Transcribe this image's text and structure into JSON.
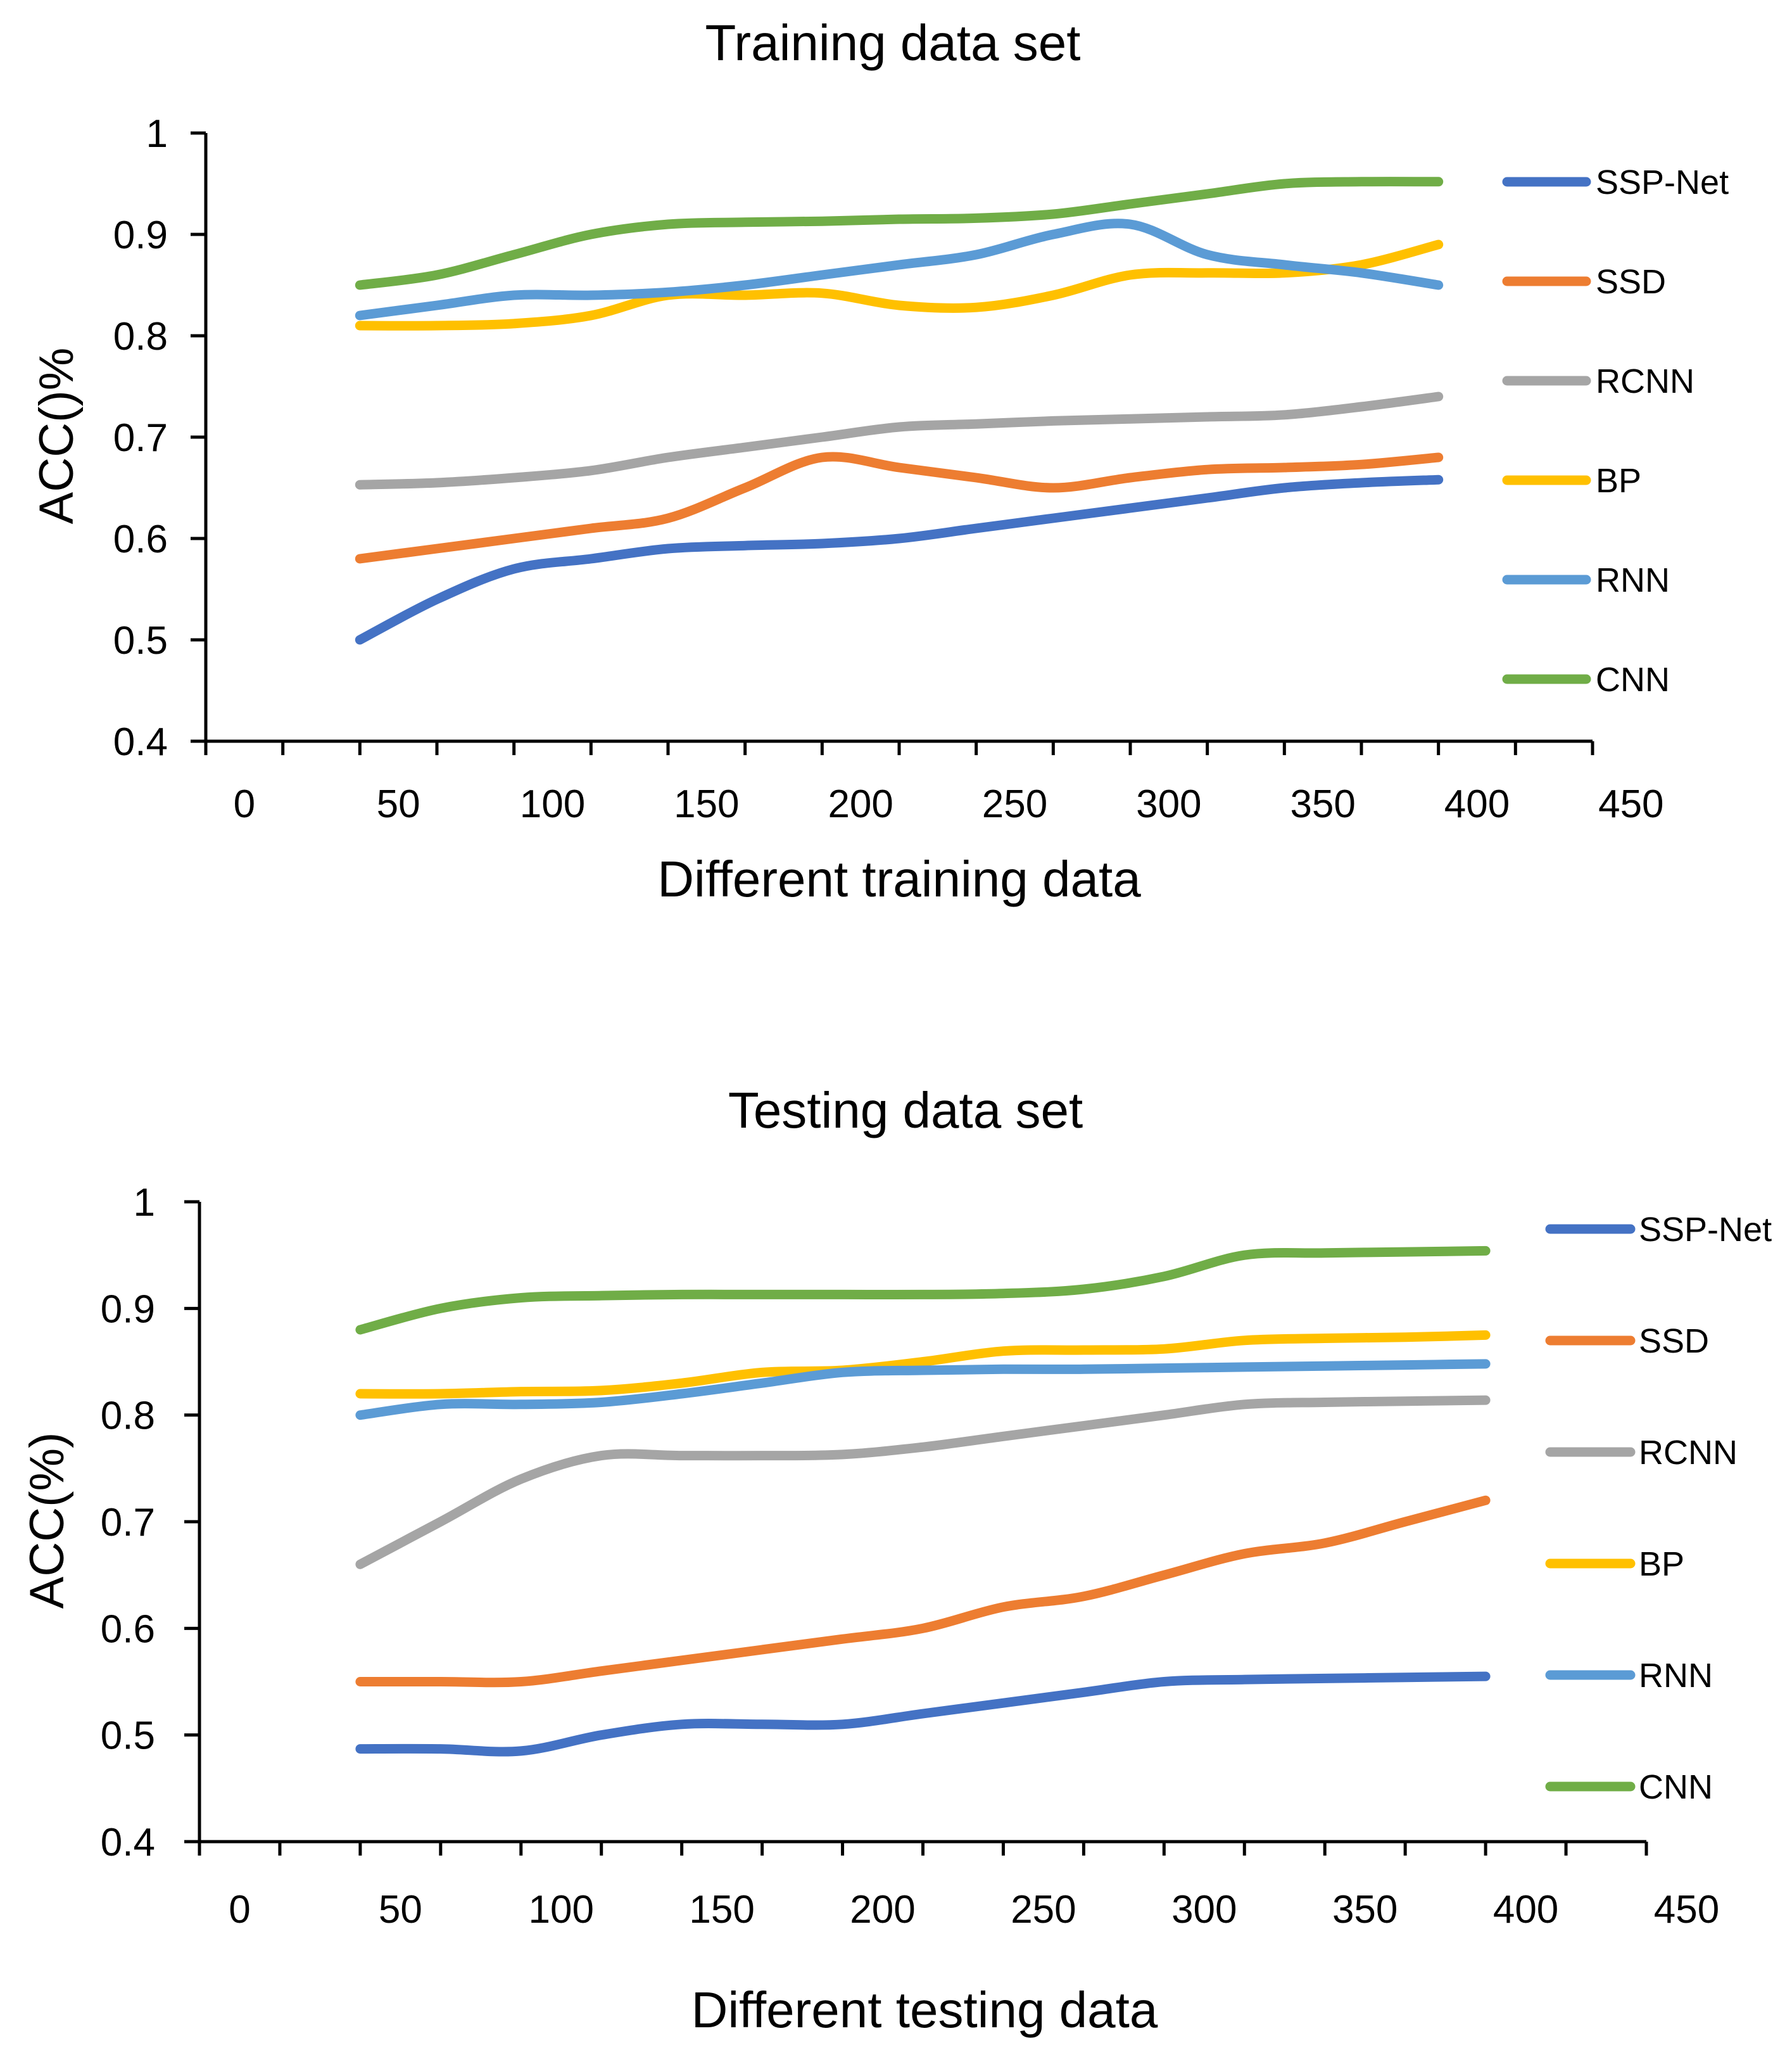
{
  "colors": {
    "SSP-Net": "#4472c4",
    "SSD": "#ed7d31",
    "RCNN": "#a5a5a5",
    "BP": "#ffc000",
    "RNN": "#5b9bd5",
    "CNN": "#70ad47"
  },
  "chart_data": [
    {
      "type": "line",
      "title": "Training data set",
      "xlabel": "Different training data",
      "ylabel": "ACC()%",
      "xlim": [
        0,
        450
      ],
      "ylim": [
        0.4,
        1
      ],
      "x_ticks": [
        0,
        50,
        100,
        150,
        200,
        250,
        300,
        350,
        400,
        450
      ],
      "y_ticks": [
        0.4,
        0.5,
        0.6,
        0.7,
        0.8,
        0.9,
        1
      ],
      "y_tick_labels": [
        "0.4",
        "0.5",
        "0.6",
        "0.7",
        "0.8",
        "0.9",
        "1"
      ],
      "legend_position": "right",
      "x": [
        50,
        75,
        100,
        125,
        150,
        175,
        200,
        225,
        250,
        275,
        300,
        325,
        350,
        375,
        400
      ],
      "series": [
        {
          "name": "SSP-Net",
          "values": [
            0.5,
            0.54,
            0.57,
            0.58,
            0.59,
            0.593,
            0.595,
            0.6,
            0.61,
            0.62,
            0.63,
            0.64,
            0.65,
            0.655,
            0.658
          ]
        },
        {
          "name": "SSD",
          "values": [
            0.58,
            0.59,
            0.6,
            0.61,
            0.62,
            0.65,
            0.68,
            0.67,
            0.66,
            0.65,
            0.66,
            0.668,
            0.67,
            0.673,
            0.68
          ]
        },
        {
          "name": "RCNN",
          "values": [
            0.653,
            0.655,
            0.66,
            0.667,
            0.68,
            0.69,
            0.7,
            0.71,
            0.713,
            0.716,
            0.718,
            0.72,
            0.722,
            0.73,
            0.74
          ]
        },
        {
          "name": "BP",
          "values": [
            0.81,
            0.81,
            0.812,
            0.82,
            0.84,
            0.84,
            0.842,
            0.83,
            0.828,
            0.84,
            0.86,
            0.862,
            0.862,
            0.87,
            0.89
          ]
        },
        {
          "name": "RNN",
          "values": [
            0.82,
            0.83,
            0.84,
            0.84,
            0.843,
            0.85,
            0.86,
            0.87,
            0.88,
            0.9,
            0.91,
            0.88,
            0.87,
            0.862,
            0.85
          ]
        },
        {
          "name": "CNN",
          "values": [
            0.85,
            0.86,
            0.88,
            0.9,
            0.91,
            0.912,
            0.913,
            0.915,
            0.916,
            0.92,
            0.93,
            0.94,
            0.95,
            0.952,
            0.952
          ]
        }
      ]
    },
    {
      "type": "line",
      "title": "Testing data set",
      "xlabel": "Different testing data",
      "ylabel": "ACC(%)",
      "xlim": [
        0,
        450
      ],
      "ylim": [
        0.4,
        1
      ],
      "x_ticks": [
        0,
        50,
        100,
        150,
        200,
        250,
        300,
        350,
        400,
        450
      ],
      "y_ticks": [
        0.4,
        0.5,
        0.6,
        0.7,
        0.8,
        0.9,
        1
      ],
      "y_tick_labels": [
        "0.4",
        "0.5",
        "0.6",
        "0.7",
        "0.8",
        "0.9",
        "1"
      ],
      "legend_position": "right",
      "x": [
        50,
        75,
        100,
        125,
        150,
        175,
        200,
        225,
        250,
        275,
        300,
        325,
        350,
        375,
        400
      ],
      "series": [
        {
          "name": "SSP-Net",
          "values": [
            0.487,
            0.487,
            0.485,
            0.5,
            0.51,
            0.51,
            0.51,
            0.52,
            0.53,
            0.54,
            0.55,
            0.552,
            0.553,
            0.554,
            0.555
          ]
        },
        {
          "name": "SSD",
          "values": [
            0.55,
            0.55,
            0.55,
            0.56,
            0.57,
            0.58,
            0.59,
            0.6,
            0.62,
            0.63,
            0.65,
            0.67,
            0.68,
            0.7,
            0.72
          ]
        },
        {
          "name": "RCNN",
          "values": [
            0.66,
            0.7,
            0.74,
            0.762,
            0.762,
            0.762,
            0.763,
            0.77,
            0.78,
            0.79,
            0.8,
            0.81,
            0.812,
            0.813,
            0.814
          ]
        },
        {
          "name": "BP",
          "values": [
            0.82,
            0.82,
            0.822,
            0.823,
            0.83,
            0.84,
            0.842,
            0.85,
            0.86,
            0.861,
            0.862,
            0.87,
            0.872,
            0.873,
            0.875
          ]
        },
        {
          "name": "RNN",
          "values": [
            0.8,
            0.81,
            0.81,
            0.812,
            0.82,
            0.83,
            0.84,
            0.842,
            0.843,
            0.843,
            0.844,
            0.845,
            0.846,
            0.847,
            0.848
          ]
        },
        {
          "name": "CNN",
          "values": [
            0.88,
            0.9,
            0.91,
            0.912,
            0.913,
            0.913,
            0.913,
            0.913,
            0.914,
            0.918,
            0.93,
            0.95,
            0.952,
            0.953,
            0.954
          ]
        }
      ]
    }
  ]
}
